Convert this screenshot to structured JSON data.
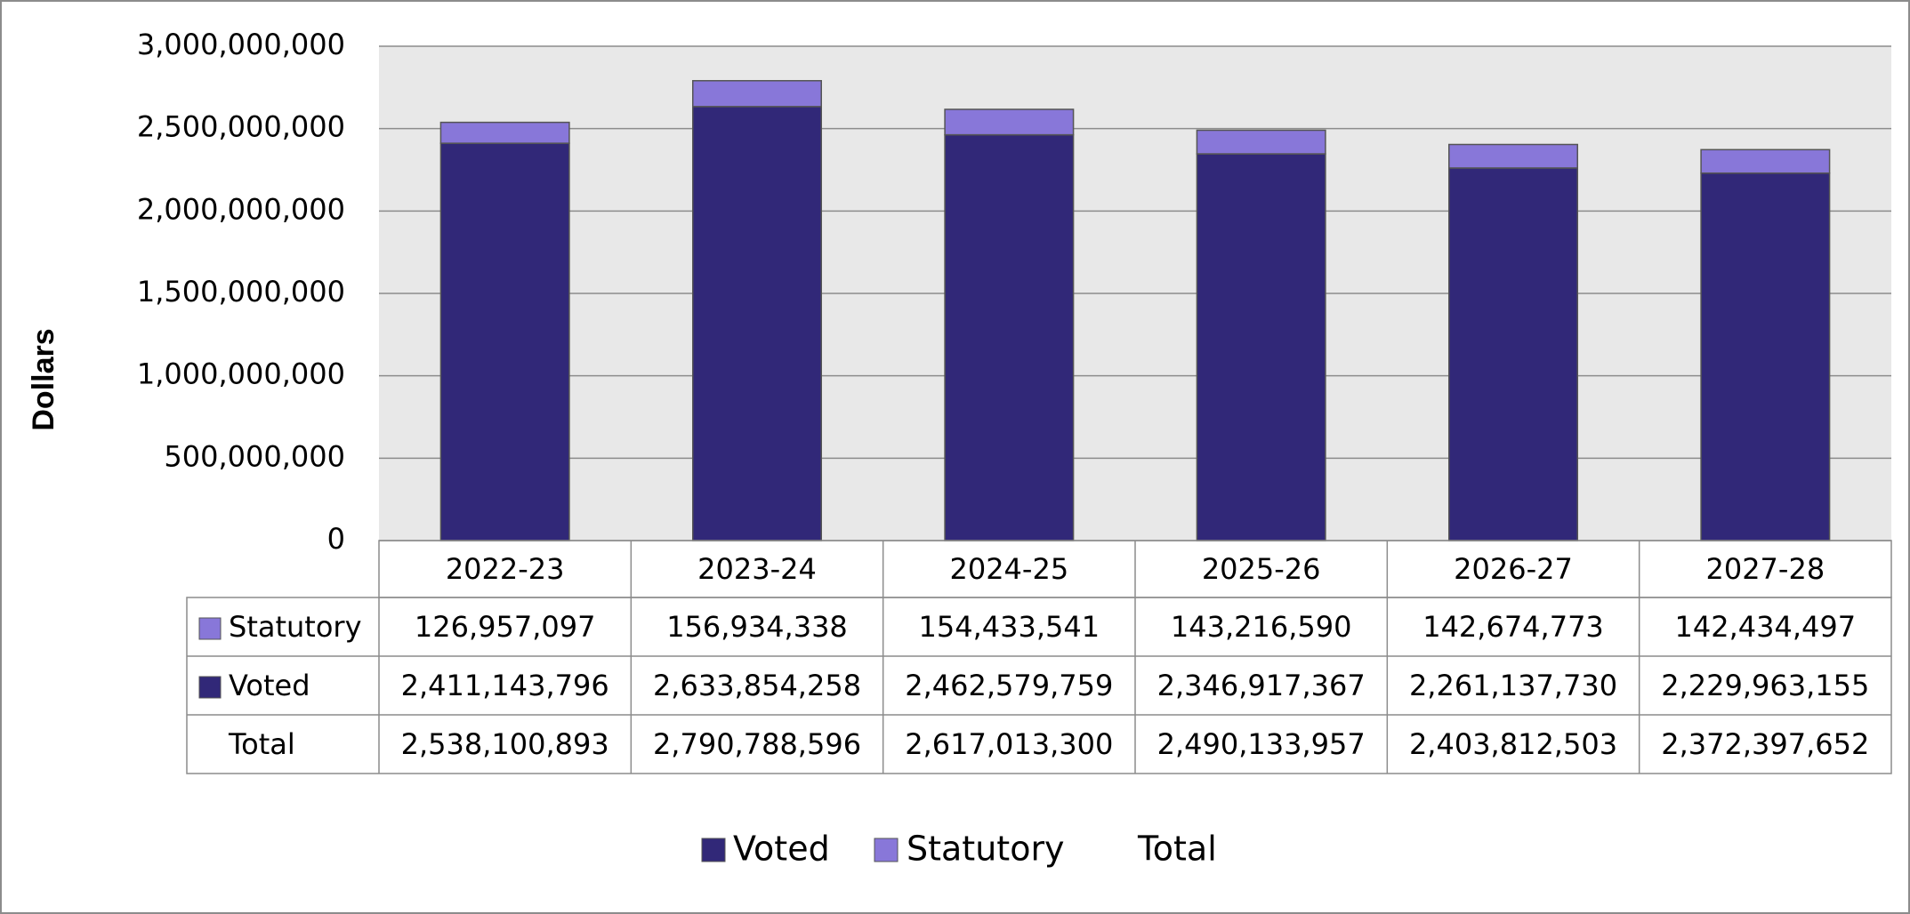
{
  "chart_data": {
    "type": "bar",
    "stacked": true,
    "y_axis_label": "Dollars",
    "categories": [
      "2022-23",
      "2023-24",
      "2024-25",
      "2025-26",
      "2026-27",
      "2027-28"
    ],
    "series": [
      {
        "name": "Voted",
        "color": "#312878",
        "values": [
          2411143796,
          2633854258,
          2462579759,
          2346917367,
          2261137730,
          2229963155
        ],
        "value_labels": [
          "2,411,143,796",
          "2,633,854,258",
          "2,462,579,759",
          "2,346,917,367",
          "2,261,137,730",
          "2,229,963,155"
        ]
      },
      {
        "name": "Statutory",
        "color": "#8877d9",
        "values": [
          126957097,
          156934338,
          154433541,
          143216590,
          142674773,
          142434497
        ],
        "value_labels": [
          "126,957,097",
          "156,934,338",
          "154,433,541",
          "143,216,590",
          "142,674,773",
          "142,434,497"
        ]
      },
      {
        "name": "Total",
        "values": [
          2538100893,
          2790788596,
          2617013300,
          2490133957,
          2403812503,
          2372397652
        ],
        "value_labels": [
          "2,538,100,893",
          "2,790,788,596",
          "2,617,013,300",
          "2,490,133,957",
          "2,403,812,503",
          "2,372,397,652"
        ]
      }
    ],
    "ylim": [
      0,
      3000000000
    ],
    "yticks": [
      0,
      {
        "value": 500000000,
        "label": "500,000,000"
      },
      {
        "value": 1000000000,
        "label": "1,000,000,000"
      },
      {
        "value": 1500000000,
        "label": "1,500,000,000"
      },
      {
        "value": 2000000000,
        "label": "2,000,000,000"
      },
      {
        "value": 2500000000,
        "label": "2,500,000,000"
      },
      {
        "value": 3000000000,
        "label": "3,000,000,000"
      }
    ],
    "grid": true
  }
}
